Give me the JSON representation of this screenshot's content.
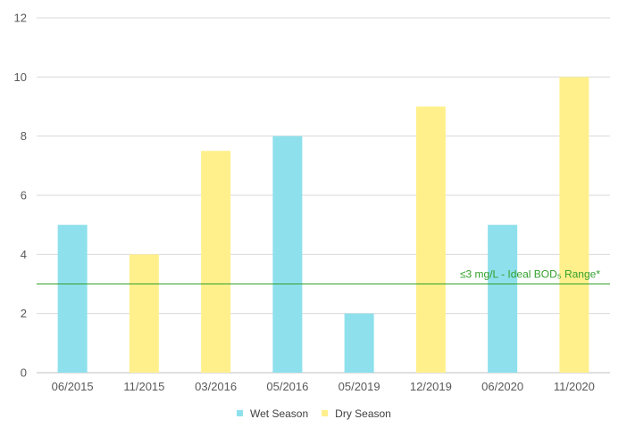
{
  "chart_data": {
    "type": "bar",
    "title": "",
    "xlabel": "",
    "ylabel": "",
    "categories": [
      "06/2015",
      "11/2015",
      "03/2016",
      "05/2016",
      "05/2019",
      "12/2019",
      "06/2020",
      "11/2020"
    ],
    "values": [
      5,
      4,
      7.5,
      8,
      2,
      9,
      5,
      10
    ],
    "season": [
      "Wet Season",
      "Dry Season",
      "Dry Season",
      "Wet Season",
      "Wet Season",
      "Dry Season",
      "Wet Season",
      "Dry Season"
    ],
    "legend": [
      {
        "name": "Wet Season",
        "color": "#8ee0ec"
      },
      {
        "name": "Dry Season",
        "color": "#fff08c"
      }
    ],
    "legend_position": "bottom",
    "ylim": [
      0,
      12
    ],
    "yticks": [
      0,
      2,
      4,
      6,
      8,
      10,
      12
    ],
    "grid": true,
    "reference_line": {
      "value": 3,
      "label": "≤3 mg/L - Ideal BOD₅ Range*",
      "color": "#33a02c"
    }
  }
}
